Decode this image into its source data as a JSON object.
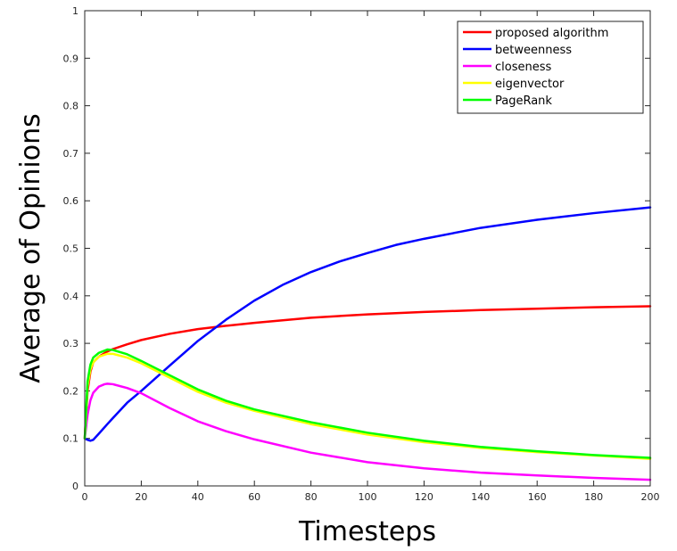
{
  "chart_data": {
    "type": "line",
    "xlabel": "Timesteps",
    "ylabel": "Average of Opinions",
    "xlim": [
      0,
      200
    ],
    "ylim": [
      0,
      1
    ],
    "xticks": [
      "0",
      "20",
      "40",
      "60",
      "80",
      "100",
      "120",
      "140",
      "160",
      "180",
      "200"
    ],
    "yticks": [
      "0",
      "0.1",
      "0.2",
      "0.3",
      "0.4",
      "0.5",
      "0.6",
      "0.7",
      "0.8",
      "0.9",
      "1"
    ],
    "grid": false,
    "legend_position": "top-right",
    "series": [
      {
        "name": "proposed algorithm",
        "color": "#ff0000",
        "x": [
          0,
          1,
          2,
          3,
          5,
          8,
          10,
          15,
          20,
          30,
          40,
          50,
          60,
          80,
          100,
          120,
          140,
          160,
          180,
          200
        ],
        "y": [
          0.1,
          0.2,
          0.24,
          0.26,
          0.272,
          0.283,
          0.288,
          0.298,
          0.307,
          0.32,
          0.33,
          0.337,
          0.343,
          0.354,
          0.361,
          0.366,
          0.37,
          0.373,
          0.376,
          0.378
        ]
      },
      {
        "name": "betweenness",
        "color": "#0000ff",
        "x": [
          0,
          1,
          2,
          3,
          5,
          8,
          10,
          15,
          20,
          30,
          40,
          50,
          60,
          70,
          80,
          90,
          100,
          110,
          120,
          140,
          160,
          180,
          200
        ],
        "y": [
          0.1,
          0.097,
          0.095,
          0.097,
          0.11,
          0.13,
          0.143,
          0.175,
          0.2,
          0.253,
          0.305,
          0.35,
          0.39,
          0.423,
          0.45,
          0.472,
          0.49,
          0.507,
          0.52,
          0.543,
          0.56,
          0.574,
          0.586
        ]
      },
      {
        "name": "closeness",
        "color": "#ff00ff",
        "x": [
          0,
          1,
          2,
          3,
          5,
          7,
          8,
          10,
          15,
          20,
          30,
          40,
          50,
          60,
          80,
          100,
          120,
          140,
          160,
          180,
          200
        ],
        "y": [
          0.1,
          0.15,
          0.18,
          0.196,
          0.209,
          0.214,
          0.215,
          0.214,
          0.206,
          0.195,
          0.164,
          0.136,
          0.115,
          0.098,
          0.07,
          0.05,
          0.037,
          0.028,
          0.022,
          0.017,
          0.013
        ]
      },
      {
        "name": "eigenvector",
        "color": "#ffff00",
        "x": [
          0,
          1,
          2,
          3,
          5,
          8,
          10,
          15,
          20,
          30,
          40,
          50,
          60,
          80,
          100,
          120,
          140,
          160,
          180,
          200
        ],
        "y": [
          0.1,
          0.21,
          0.245,
          0.26,
          0.272,
          0.278,
          0.278,
          0.27,
          0.258,
          0.228,
          0.198,
          0.175,
          0.158,
          0.13,
          0.108,
          0.092,
          0.08,
          0.071,
          0.064,
          0.057
        ]
      },
      {
        "name": "PageRank",
        "color": "#00ff00",
        "x": [
          0,
          1,
          2,
          3,
          5,
          8,
          10,
          15,
          20,
          30,
          40,
          50,
          60,
          80,
          100,
          120,
          140,
          160,
          180,
          200
        ],
        "y": [
          0.1,
          0.22,
          0.255,
          0.27,
          0.28,
          0.287,
          0.286,
          0.277,
          0.263,
          0.233,
          0.203,
          0.179,
          0.161,
          0.134,
          0.112,
          0.095,
          0.082,
          0.073,
          0.065,
          0.059
        ]
      }
    ]
  }
}
